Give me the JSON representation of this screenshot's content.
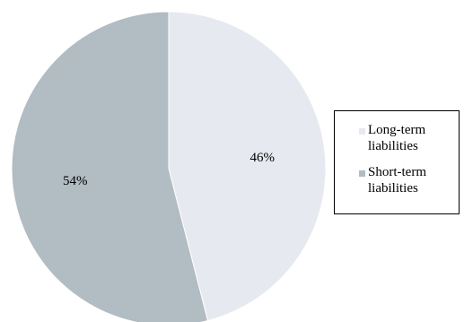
{
  "chart_data": {
    "type": "pie",
    "slices": [
      {
        "label": "Long-term liabilities",
        "value": 46,
        "display": "46%",
        "color": "#e7e9f0"
      },
      {
        "label": "Short-term liabilities",
        "value": 54,
        "display": "54%",
        "color": "#b1bcc3"
      }
    ],
    "start_angle_deg": 0,
    "direction": "clockwise",
    "legend_position": "right"
  },
  "legend": {
    "items": [
      {
        "label": "Long-term liabilities",
        "color": "#e7e9f0"
      },
      {
        "label": "Short-term liabilities",
        "color": "#b1bcc3"
      }
    ]
  }
}
